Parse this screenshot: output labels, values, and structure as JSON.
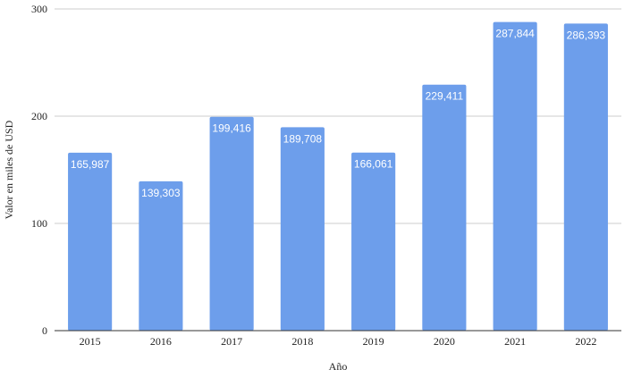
{
  "chart_data": {
    "type": "bar",
    "categories": [
      "2015",
      "2016",
      "2017",
      "2018",
      "2019",
      "2020",
      "2021",
      "2022"
    ],
    "values": [
      165.987,
      139.303,
      199.416,
      189.708,
      166.061,
      229.411,
      287.844,
      286.393
    ],
    "data_labels": [
      "165,987",
      "139,303",
      "199,416",
      "189,708",
      "166,061",
      "229,411",
      "287,844",
      "286,393"
    ],
    "xlabel": "Año",
    "ylabel": "Valor en miles de USD",
    "ylim": [
      0,
      300
    ],
    "yticks": [
      0,
      100,
      200,
      300
    ],
    "grid": true,
    "bar_color": "#6d9eeb",
    "grid_color": "#cccccc",
    "axis_color": "#333333"
  }
}
